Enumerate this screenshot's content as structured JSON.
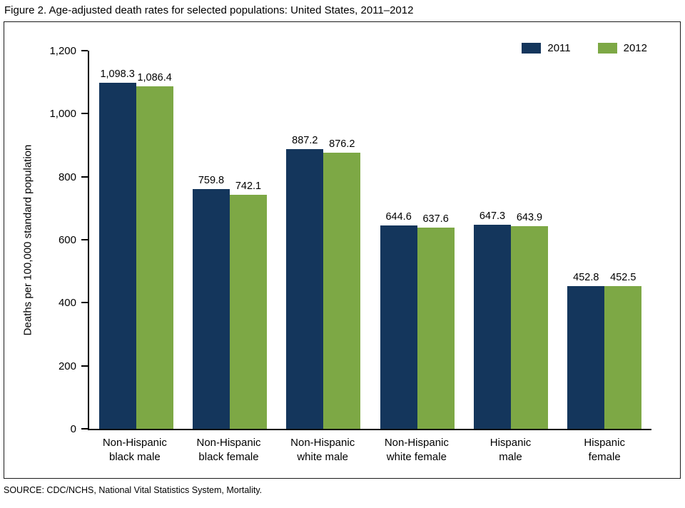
{
  "figure": {
    "title": "Figure 2. Age-adjusted death rates for selected populations: United States, 2011–2012",
    "source": "SOURCE: CDC/NCHS, National Vital Statistics System, Mortality."
  },
  "chart_data": {
    "type": "bar",
    "title": "Figure 2. Age-adjusted death rates for selected populations: United States, 2011–2012",
    "categories": [
      "Non-Hispanic black male",
      "Non-Hispanic black female",
      "Non-Hispanic white male",
      "Non-Hispanic white female",
      "Hispanic male",
      "Hispanic female"
    ],
    "categories_display": [
      "Non-Hispanic\nblack male",
      "Non-Hispanic\nblack female",
      "Non-Hispanic\nwhite male",
      "Non-Hispanic\nwhite female",
      "Hispanic\nmale",
      "Hispanic\nfemale"
    ],
    "series": [
      {
        "name": "2011",
        "color": "#14365c",
        "values": [
          1098.3,
          759.8,
          887.2,
          644.6,
          647.3,
          452.8
        ],
        "labels": [
          "1,098.3",
          "759.8",
          "887.2",
          "644.6",
          "647.3",
          "452.8"
        ]
      },
      {
        "name": "2012",
        "color": "#7da845",
        "values": [
          1086.4,
          742.1,
          876.2,
          637.6,
          643.9,
          452.5
        ],
        "labels": [
          "1,086.4",
          "742.1",
          "876.2",
          "637.6",
          "643.9",
          "452.5"
        ]
      }
    ],
    "xlabel": "",
    "ylabel": "Deaths per 100,000 standard population",
    "ylim": [
      0,
      1200
    ],
    "yticks": [
      0,
      200,
      400,
      600,
      800,
      1000,
      1200
    ],
    "ytick_labels": [
      "0",
      "200",
      "400",
      "600",
      "800",
      "1,000",
      "1,200"
    ],
    "grid": false,
    "legend_position": "top-right"
  }
}
